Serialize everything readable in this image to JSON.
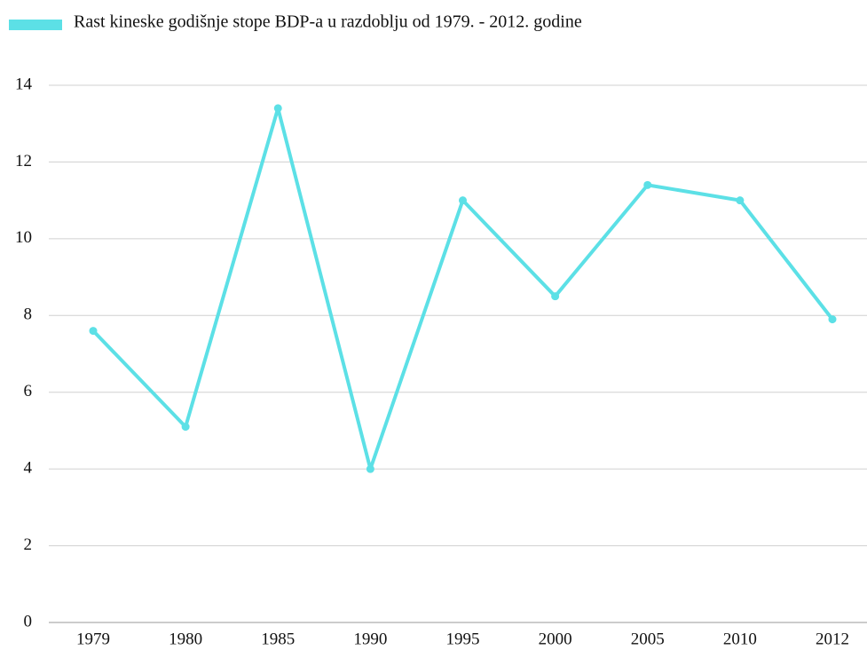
{
  "chart_data": {
    "type": "line",
    "categories": [
      "1979",
      "1980",
      "1985",
      "1990",
      "1995",
      "2000",
      "2005",
      "2010",
      "2012"
    ],
    "series": [
      {
        "name": "Rast kineske godišnje stope BDP-a  u razdoblju od 1979. - 2012. godine",
        "color": "#5ce0e6",
        "values": [
          7.6,
          5.1,
          13.4,
          4.0,
          11.0,
          8.5,
          11.4,
          11.0,
          7.9
        ]
      }
    ],
    "ylim": [
      0,
      14
    ],
    "yticks": [
      0,
      2,
      4,
      6,
      8,
      10,
      12,
      14
    ],
    "grid": true,
    "legend": "top-left"
  }
}
